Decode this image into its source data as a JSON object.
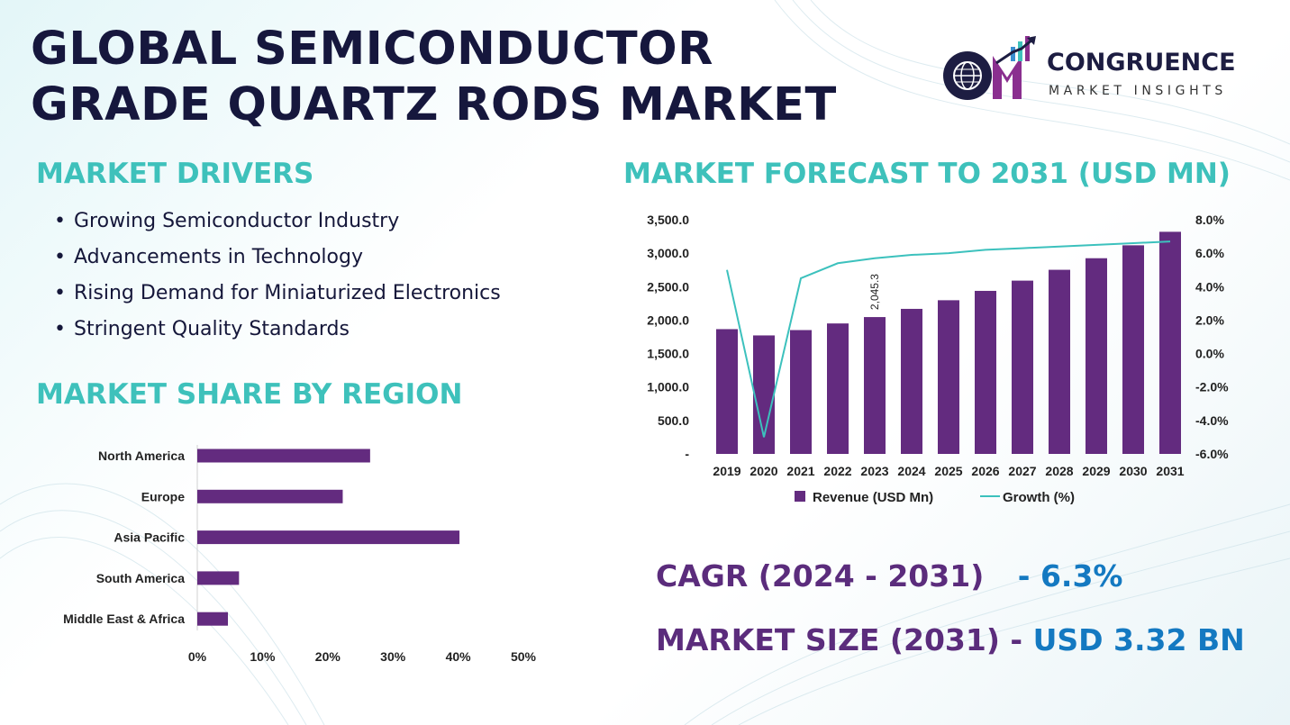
{
  "header": {
    "title_line1": "GLOBAL SEMICONDUCTOR",
    "title_line2": "GRADE QUARTZ RODS MARKET"
  },
  "logo": {
    "name": "CONGRUENCE",
    "subtitle": "MARKET INSIGHTS",
    "icon": "globe-bar-chart-logo-icon",
    "letters": "CM"
  },
  "drivers": {
    "title": "MARKET DRIVERS",
    "items": [
      "Growing Semiconductor Industry",
      "Advancements in Technology",
      "Rising Demand for Miniaturized Electronics",
      "Stringent Quality Standards"
    ]
  },
  "region": {
    "title": "MARKET SHARE BY REGION"
  },
  "forecast": {
    "title": "MARKET FORECAST TO 2031 (USD MN)"
  },
  "stats": {
    "cagr_label": "CAGR (2024 - 2031)",
    "cagr_value": "- 6.3%",
    "size_label": "MARKET SIZE (2031)",
    "size_value": "USD 3.32 BN"
  },
  "colors": {
    "title": "#16173d",
    "section_title": "#3ec1bb",
    "bar": "#632b7f",
    "line": "#3cc1bd",
    "stat_label": "#5b2c7c",
    "stat_value": "#1479c1"
  },
  "chart_data": [
    {
      "type": "bar",
      "orientation": "horizontal",
      "categories": [
        "North America",
        "Europe",
        "Asia Pacific",
        "South America",
        "Middle East & Africa"
      ],
      "values": [
        26.5,
        22.3,
        40.2,
        6.4,
        4.7
      ],
      "xlim": [
        0,
        50
      ],
      "xticks": [
        "0%",
        "10%",
        "20%",
        "30%",
        "40%",
        "50%"
      ],
      "grid": false
    },
    {
      "type": "bar",
      "x": [
        "2019",
        "2020",
        "2021",
        "2022",
        "2023",
        "2024",
        "2025",
        "2026",
        "2027",
        "2028",
        "2029",
        "2030",
        "2031"
      ],
      "series": [
        {
          "name": "Revenue (USD Mn)",
          "type": "bar",
          "axis": "left",
          "values": [
            1865,
            1771,
            1851,
            1950,
            2045.3,
            2168,
            2297,
            2437,
            2590,
            2752,
            2925,
            3118,
            3320
          ]
        },
        {
          "name": "Growth (%)",
          "type": "line",
          "axis": "right",
          "values": [
            5.0,
            -5.0,
            4.5,
            5.4,
            5.7,
            5.9,
            6.0,
            6.2,
            6.3,
            6.4,
            6.5,
            6.6,
            6.7
          ]
        }
      ],
      "data_labels": [
        {
          "index": 4,
          "text": "2,045.3"
        }
      ],
      "yticks_left": [
        "-",
        "500.0",
        "1,000.0",
        "1,500.0",
        "2,000.0",
        "2,500.0",
        "3,000.0",
        "3,500.0"
      ],
      "ylim_left": [
        0,
        3500
      ],
      "yticks_right": [
        "-6.0%",
        "-4.0%",
        "-2.0%",
        "0.0%",
        "2.0%",
        "4.0%",
        "6.0%",
        "8.0%"
      ],
      "ylim_right": [
        -6,
        8
      ],
      "legend_position": "bottom",
      "grid": false
    }
  ]
}
